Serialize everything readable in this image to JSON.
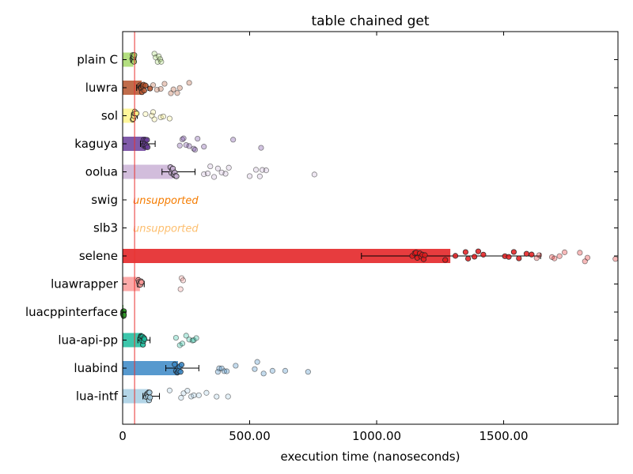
{
  "chart_data": {
    "type": "bar",
    "title": "table chained get",
    "xlabel": "execution time (nanoseconds)",
    "ylabel": "",
    "xlim": [
      0,
      1950
    ],
    "xticks": [
      {
        "value": 0,
        "label": "0"
      },
      {
        "value": 500,
        "label": "500.00"
      },
      {
        "value": 1000,
        "label": "1000.00"
      },
      {
        "value": 1500,
        "label": "1500.00"
      }
    ],
    "reference_line": 47,
    "reference_line_color": "#e8322f",
    "grid": false,
    "legend": "none",
    "categories": [
      "plain C",
      "luwra",
      "sol",
      "kaguya",
      "oolua",
      "swig",
      "slb3",
      "selene",
      "luawrapper",
      "luacppinterface",
      "lua-api-pp",
      "luabind",
      "lua-intf"
    ],
    "series": [
      {
        "category": "plain C",
        "value": 42,
        "err_low": 32,
        "err_high": 52,
        "color": "#a6d96a",
        "unsupported": false,
        "label": "",
        "samples": [
          38,
          40,
          41,
          42,
          43,
          44,
          45,
          46,
          125,
          130,
          138,
          142,
          148,
          152
        ]
      },
      {
        "category": "luwra",
        "value": 75,
        "err_low": 55,
        "err_high": 100,
        "color": "#b5522b",
        "unsupported": false,
        "label": "",
        "samples": [
          68,
          70,
          72,
          74,
          76,
          78,
          80,
          82,
          85,
          90,
          108,
          120,
          135,
          150,
          165,
          190,
          200,
          215,
          225,
          262
        ]
      },
      {
        "category": "sol",
        "value": 45,
        "err_low": 35,
        "err_high": 58,
        "color": "#fff48a",
        "unsupported": false,
        "label": "",
        "samples": [
          40,
          42,
          44,
          45,
          46,
          48,
          50,
          55,
          90,
          115,
          120,
          125,
          150,
          160,
          185
        ]
      },
      {
        "category": "kaguya",
        "value": 90,
        "err_low": 70,
        "err_high": 128,
        "color": "#6a3d9a",
        "unsupported": false,
        "label": "",
        "samples": [
          82,
          84,
          86,
          88,
          90,
          92,
          94,
          96,
          98,
          225,
          235,
          240,
          250,
          262,
          280,
          285,
          295,
          320,
          435,
          545
        ]
      },
      {
        "category": "oolua",
        "value": 198,
        "err_low": 155,
        "err_high": 285,
        "color": "#cab2d6",
        "unsupported": false,
        "label": "",
        "samples": [
          188,
          192,
          195,
          198,
          200,
          202,
          205,
          208,
          212,
          320,
          335,
          345,
          360,
          375,
          390,
          405,
          418,
          500,
          525,
          540,
          550,
          565,
          755
        ]
      },
      {
        "category": "swig",
        "value": 0,
        "color": "#f57c00",
        "unsupported": true,
        "label": "unsupported",
        "samples": []
      },
      {
        "category": "slb3",
        "value": 0,
        "color": "#fdbf6f",
        "unsupported": true,
        "label": "unsupported",
        "samples": []
      },
      {
        "category": "selene",
        "value": 1290,
        "err_low": 940,
        "err_high": 1645,
        "color": "#e31a1c",
        "unsupported": false,
        "label": "",
        "samples": [
          1140,
          1150,
          1155,
          1160,
          1170,
          1175,
          1180,
          1185,
          1190,
          1270,
          1310,
          1350,
          1360,
          1385,
          1400,
          1420,
          1505,
          1520,
          1540,
          1560,
          1590,
          1610,
          1630,
          1640,
          1690,
          1700,
          1720,
          1740,
          1800,
          1820,
          1830,
          1940
        ]
      },
      {
        "category": "luawrapper",
        "value": 68,
        "err_low": 58,
        "err_high": 85,
        "color": "#fb9a99",
        "unsupported": false,
        "label": "",
        "samples": [
          62,
          64,
          66,
          68,
          70,
          72,
          74,
          228,
          232,
          238
        ]
      },
      {
        "category": "luacppinterface",
        "value": 3,
        "err_low": 0,
        "err_high": 6,
        "color": "#33a02c",
        "unsupported": false,
        "label": "",
        "samples": [
          1,
          2,
          3,
          3,
          4,
          4,
          5,
          5
        ]
      },
      {
        "category": "lua-api-pp",
        "value": 78,
        "err_low": 60,
        "err_high": 108,
        "color": "#1abc9c",
        "unsupported": false,
        "label": "",
        "samples": [
          72,
          74,
          76,
          78,
          80,
          82,
          84,
          86,
          210,
          225,
          235,
          250,
          262,
          275,
          280,
          290
        ]
      },
      {
        "category": "luabind",
        "value": 218,
        "err_low": 170,
        "err_high": 300,
        "color": "#3a87c5",
        "unsupported": false,
        "label": "",
        "samples": [
          205,
          210,
          215,
          218,
          220,
          222,
          225,
          228,
          232,
          375,
          380,
          390,
          400,
          410,
          445,
          520,
          530,
          555,
          590,
          640,
          730
        ]
      },
      {
        "category": "lua-intf",
        "value": 100,
        "err_low": 80,
        "err_high": 145,
        "color": "#a6cee3",
        "unsupported": false,
        "label": "",
        "samples": [
          92,
          95,
          98,
          100,
          102,
          104,
          106,
          108,
          185,
          230,
          240,
          255,
          270,
          280,
          300,
          330,
          370,
          415
        ]
      }
    ]
  }
}
